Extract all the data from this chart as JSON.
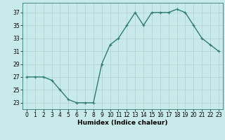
{
  "x": [
    0,
    1,
    2,
    3,
    4,
    5,
    6,
    7,
    8,
    9,
    10,
    11,
    12,
    13,
    14,
    15,
    16,
    17,
    18,
    19,
    20,
    21,
    22,
    23
  ],
  "y": [
    27,
    27,
    27,
    26.5,
    25,
    23.5,
    23,
    23,
    23,
    29,
    32,
    33,
    35,
    37,
    35,
    37,
    37,
    37,
    37.5,
    37,
    35,
    33,
    32,
    31
  ],
  "line_color": "#2e7d6e",
  "marker": "+",
  "marker_size": 3,
  "line_width": 1.0,
  "background_color": "#c8eaea",
  "grid_color": "#b0d0d0",
  "xlabel": "Humidex (Indice chaleur)",
  "ylabel": "",
  "xlim": [
    -0.5,
    23.5
  ],
  "ylim": [
    22,
    38.5
  ],
  "yticks": [
    23,
    25,
    27,
    29,
    31,
    33,
    35,
    37
  ],
  "xticks": [
    0,
    1,
    2,
    3,
    4,
    5,
    6,
    7,
    8,
    9,
    10,
    11,
    12,
    13,
    14,
    15,
    16,
    17,
    18,
    19,
    20,
    21,
    22,
    23
  ],
  "tick_fontsize": 5.5,
  "xlabel_fontsize": 6.5
}
